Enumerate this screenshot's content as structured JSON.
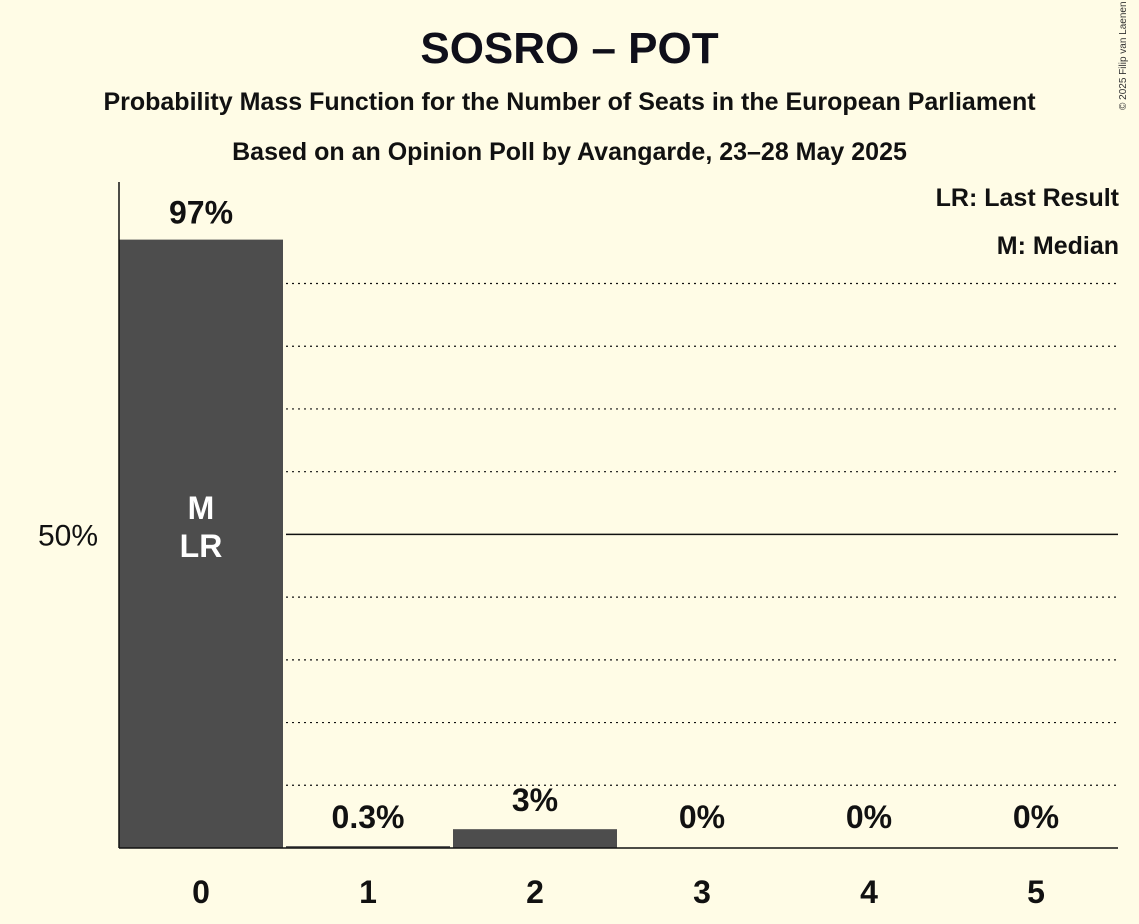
{
  "chart_data": {
    "type": "bar",
    "title": "SOSRO – POT",
    "subtitle": "Probability Mass Function for the Number of Seats in the European Parliament",
    "subtitle2": "Based on an Opinion Poll by Avangarde, 23–28 May 2025",
    "copyright": "© 2025 Filip van Laenen",
    "legend": [
      "LR: Last Result",
      "M: Median"
    ],
    "legend_position": "top-right",
    "categories": [
      "0",
      "1",
      "2",
      "3",
      "4",
      "5"
    ],
    "values": [
      97,
      0.3,
      3,
      0,
      0,
      0
    ],
    "value_labels": [
      "97%",
      "0.3%",
      "3%",
      "0%",
      "0%",
      "0%"
    ],
    "bar_markers": [
      [
        "M",
        "LR"
      ],
      [],
      [],
      [],
      [],
      []
    ],
    "y_tick_label": "50%",
    "y_tick_value": 50,
    "ylim": [
      0,
      100
    ],
    "gridlines": [
      10,
      20,
      30,
      40,
      50,
      60,
      70,
      80,
      90
    ],
    "bar_color": "#4D4D4D",
    "background": "#FFFCE6"
  }
}
